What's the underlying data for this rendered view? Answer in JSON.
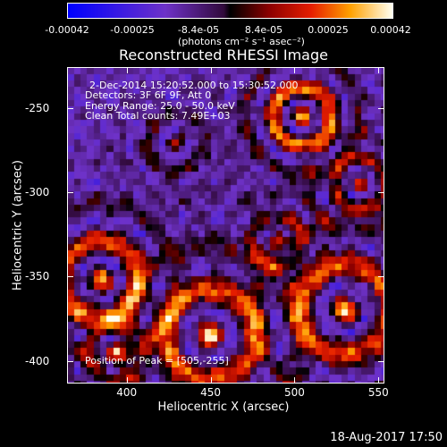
{
  "colorbar": {
    "ticks": [
      "-0.00042",
      "-0.00025",
      "-8.4e-05",
      "8.4e-05",
      "0.00025",
      "0.00042"
    ],
    "unit_label": "(photons cm⁻² s⁻¹ asec⁻²)"
  },
  "footer": {
    "timestamp": "18-Aug-2017 17:50"
  },
  "chart_data": {
    "type": "heatmap",
    "title": "Reconstructed RHESSI Image",
    "xlabel": "Heliocentric X (arcsec)",
    "ylabel": "Heliocentric Y (arcsec)",
    "xlim": [
      365,
      553
    ],
    "ylim": [
      -413,
      -226
    ],
    "x_ticks": [
      "400",
      "450",
      "500",
      "550"
    ],
    "y_ticks": [
      "-250",
      "-300",
      "-350",
      "-400"
    ],
    "color_range": [
      -0.00042,
      0.00042
    ],
    "annotations": {
      "time_range": "2-Dec-2014 15:20:52.000 to 15:30:52.000",
      "detectors": "Detectors: 3F 6F 9F, Att 0",
      "energy_range": "Energy Range: 25.0 - 50.0 keV",
      "clean_total": "Clean    Total counts: 7.49E+03",
      "peak_position": "Position of Peak = [505,-255]"
    },
    "peak": {
      "x": 505,
      "y": -255
    },
    "sources": [
      {
        "x": 505,
        "y": -255,
        "r": 9,
        "amp": 1.0
      },
      {
        "x": 430,
        "y": -270,
        "r": 9,
        "amp": 0.35
      },
      {
        "x": 385,
        "y": -352,
        "r": 12,
        "amp": 0.85
      },
      {
        "x": 450,
        "y": -385,
        "r": 14,
        "amp": 0.8
      },
      {
        "x": 530,
        "y": -370,
        "r": 14,
        "amp": 0.8
      },
      {
        "x": 540,
        "y": -295,
        "r": 8,
        "amp": 0.6
      },
      {
        "x": 490,
        "y": -330,
        "r": 8,
        "amp": 0.45
      },
      {
        "x": 395,
        "y": -395,
        "r": 9,
        "amp": 0.45
      }
    ]
  }
}
